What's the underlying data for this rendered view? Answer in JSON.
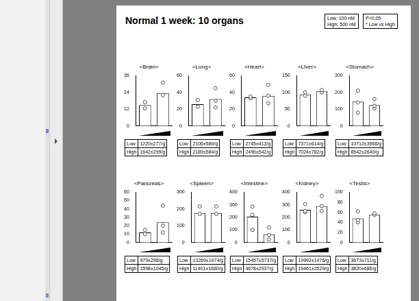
{
  "title": "Normal 1 week: 10 organs",
  "legend_box": [
    "Low: 100 nM",
    "High: 500 nM"
  ],
  "note_box": [
    "P<0.05",
    "* Low vs High"
  ],
  "chart_data": [
    {
      "type": "bar",
      "title": "<Brain>",
      "categories": [
        null,
        null
      ],
      "values": [
        15,
        23.5
      ],
      "points": [
        [
          17,
          12.5
        ],
        [
          31,
          22
        ]
      ],
      "color": "#ffffff",
      "marker": "circle",
      "ylim": [
        0,
        36
      ],
      "yticks": [
        0,
        12,
        24,
        36
      ],
      "grid": false,
      "tick_labels": "y",
      "table": [
        [
          "Low",
          "1220±277/g"
        ],
        [
          "High",
          "1642±299/g"
        ]
      ]
    },
    {
      "type": "bar",
      "title": "<Lung>",
      "categories": [
        null,
        null
      ],
      "values": [
        26,
        32
      ],
      "points": [
        [
          31,
          23
        ],
        [
          45,
          30,
          22
        ]
      ],
      "color": "#ffffff",
      "marker": "circle",
      "ylim": [
        0,
        60
      ],
      "yticks": [
        0,
        20,
        40,
        60
      ],
      "grid": false,
      "tick_labels": "y",
      "table": [
        [
          "Low",
          "2106±589/g"
        ],
        [
          "High",
          "2189±584/g"
        ]
      ]
    },
    {
      "type": "bar",
      "title": "<Heart>",
      "categories": [
        null,
        null
      ],
      "values": [
        34,
        36
      ],
      "points": [
        [
          35,
          33
        ],
        [
          49,
          36,
          27
        ]
      ],
      "color": "#ffffff",
      "marker": "circle",
      "ylim": [
        0,
        60
      ],
      "yticks": [
        0,
        20,
        40,
        60
      ],
      "grid": false,
      "tick_labels": "y",
      "table": [
        [
          "Low",
          "2745±413/g"
        ],
        [
          "High",
          "2496±542/g"
        ]
      ]
    },
    {
      "type": "bar",
      "title": "<Liver>",
      "categories": [
        null,
        null
      ],
      "values": [
        94,
        103
      ],
      "points": [
        [
          100,
          90
        ],
        [
          107,
          100
        ]
      ],
      "color": "#ffffff",
      "marker": "circle",
      "ylim": [
        0,
        150
      ],
      "yticks": [
        0,
        50,
        100,
        150
      ],
      "grid": false,
      "tick_labels": "y",
      "table": [
        [
          "Low",
          "7371±614/g"
        ],
        [
          "High",
          "7024±782/g"
        ]
      ]
    },
    {
      "type": "bar",
      "title": "<Stomach>",
      "categories": [
        null,
        null
      ],
      "values": [
        145,
        125
      ],
      "points": [
        [
          210,
          140,
          80
        ],
        [
          160,
          120,
          105
        ]
      ],
      "color": "#ffffff",
      "marker": "circle",
      "ylim": [
        0,
        300
      ],
      "yticks": [
        0,
        100,
        200,
        300
      ],
      "grid": false,
      "tick_labels": "y",
      "table": [
        [
          "Low",
          "10712±3966/g"
        ],
        [
          "High",
          "8542±2640/g"
        ]
      ]
    },
    {
      "type": "bar",
      "title": "<Pancreas>",
      "categories": [
        null,
        null
      ],
      "values": [
        12,
        24
      ],
      "points": [
        [
          15,
          10
        ],
        [
          44,
          20,
          12
        ]
      ],
      "color": "#ffffff",
      "marker": "circle",
      "ylim": [
        0,
        60
      ],
      "yticks": [
        0,
        10,
        20,
        30,
        40,
        50,
        60
      ],
      "grid": false,
      "tick_labels": "y",
      "table": [
        [
          "Low",
          "979±296/g"
        ],
        [
          "High",
          "1598±1045/g"
        ]
      ]
    },
    {
      "type": "bar",
      "title": "<Spleen>",
      "categories": [
        null,
        null
      ],
      "values": [
        175,
        175
      ],
      "points": [
        [
          215,
          170
        ],
        [
          215,
          170
        ]
      ],
      "color": "#ffffff",
      "marker": "circle",
      "ylim": [
        0,
        300
      ],
      "yticks": [
        0,
        100,
        200,
        300
      ],
      "grid": false,
      "tick_labels": "y",
      "table": [
        [
          "Low",
          "13269±1474/g"
        ],
        [
          "High",
          "11401±1680/g"
        ]
      ]
    },
    {
      "type": "bar",
      "title": "<Intestine>",
      "categories": [
        null,
        null
      ],
      "values": [
        205,
        65
      ],
      "points": [
        [
          285,
          220,
          100
        ],
        [
          120,
          60,
          25
        ]
      ],
      "color": "#ffffff",
      "marker": "circle",
      "ylim": [
        0,
        400
      ],
      "yticks": [
        0,
        100,
        200,
        300,
        400
      ],
      "grid": false,
      "tick_labels": "y",
      "table": [
        [
          "Low",
          "15457±5737/g"
        ],
        [
          "High",
          "4678±2937/g"
        ]
      ]
    },
    {
      "type": "bar",
      "title": "<Kidney>",
      "categories": [
        null,
        null
      ],
      "values": [
        260,
        290
      ],
      "points": [
        [
          305,
          250,
          240
        ],
        [
          370,
          290,
          250
        ]
      ],
      "color": "#ffffff",
      "marker": "circle",
      "ylim": [
        0,
        400
      ],
      "yticks": [
        0,
        100,
        200,
        300,
        400
      ],
      "grid": false,
      "tick_labels": "y",
      "table": [
        [
          "Low",
          "19992±1476/g"
        ],
        [
          "High",
          "19461±2529/g"
        ]
      ]
    },
    {
      "type": "bar",
      "title": "<Testis>",
      "categories": [
        null,
        null
      ],
      "values": [
        48,
        55
      ],
      "points": [
        [
          62,
          45,
          40
        ],
        [
          58,
          55
        ]
      ],
      "color": "#ffffff",
      "marker": "circle",
      "ylim": [
        0,
        100
      ],
      "yticks": [
        0,
        20,
        40,
        60,
        80,
        100
      ],
      "grid": false,
      "tick_labels": "y",
      "table": [
        [
          "Low",
          "3673±711/g"
        ],
        [
          "High",
          "3820±686/g"
        ]
      ]
    }
  ]
}
